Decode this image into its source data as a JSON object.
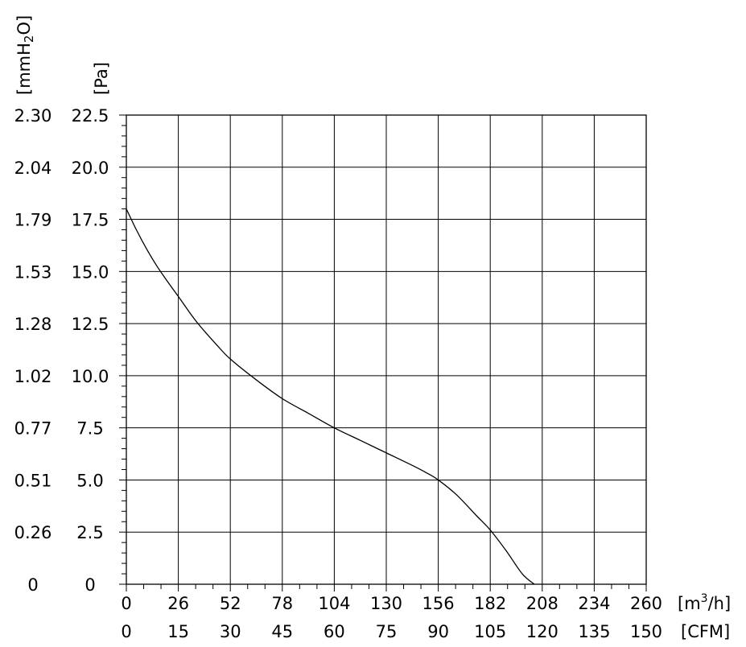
{
  "chart_data": {
    "type": "line",
    "x_axis": {
      "unit": "[m3/h]",
      "unit_base": "[m",
      "unit_sup": "3",
      "unit_tail": "/h]",
      "range": [
        0,
        260
      ],
      "ticks": [
        "0",
        "26",
        "52",
        "78",
        "104",
        "130",
        "156",
        "182",
        "208",
        "234",
        "260"
      ]
    },
    "x_axis_secondary": {
      "unit": "[CFM]",
      "range": [
        0,
        150
      ],
      "ticks": [
        "0",
        "15",
        "30",
        "45",
        "60",
        "75",
        "90",
        "105",
        "120",
        "135",
        "150"
      ]
    },
    "y_axis": {
      "unit": "[Pa]",
      "range": [
        0,
        22.5
      ],
      "ticks": [
        "0",
        "2.5",
        "5.0",
        "7.5",
        "10.0",
        "12.5",
        "15.0",
        "17.5",
        "20.0",
        "22.5"
      ]
    },
    "y_axis_secondary": {
      "unit": "[mmH2O]",
      "range": [
        0,
        2.3
      ],
      "ticks": [
        "0",
        "0.26",
        "0.51",
        "0.77",
        "1.02",
        "1.28",
        "1.53",
        "1.79",
        "2.04",
        "2.30"
      ]
    },
    "grid": true,
    "series": [
      {
        "color": "#000000",
        "points": [
          [
            0,
            18.0
          ],
          [
            5,
            17.0
          ],
          [
            10,
            16.1
          ],
          [
            15,
            15.3
          ],
          [
            20,
            14.6
          ],
          [
            26,
            13.8
          ],
          [
            35,
            12.6
          ],
          [
            45,
            11.5
          ],
          [
            52,
            10.8
          ],
          [
            65,
            9.8
          ],
          [
            78,
            8.9
          ],
          [
            91,
            8.2
          ],
          [
            104,
            7.5
          ],
          [
            117,
            6.9
          ],
          [
            130,
            6.3
          ],
          [
            143,
            5.7
          ],
          [
            150,
            5.35
          ],
          [
            156,
            5.0
          ],
          [
            165,
            4.3
          ],
          [
            175,
            3.3
          ],
          [
            182,
            2.6
          ],
          [
            190,
            1.6
          ],
          [
            198,
            0.5
          ],
          [
            204,
            0
          ]
        ]
      }
    ]
  }
}
